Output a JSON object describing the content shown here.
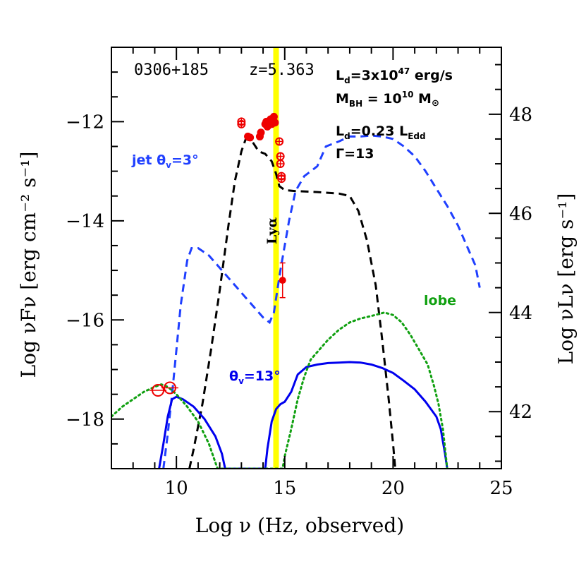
{
  "chart_data": {
    "type": "line",
    "xlabel": "Log ν (Hz, observed)",
    "ylabel_left": "Log νFν [erg cm⁻² s⁻¹]",
    "ylabel_right": "Log νLν [erg s⁻¹]",
    "xlim": [
      7,
      25
    ],
    "ylim": [
      -19,
      -10.5
    ],
    "xticks": [
      10,
      15,
      20,
      25
    ],
    "yticks_left": [
      -12,
      -14,
      -16,
      -18
    ],
    "ytick_labels_left": [
      "−12",
      "−14",
      "−16",
      "−18"
    ],
    "yticks_right": [
      {
        "label": "48",
        "left_value": -11.85
      },
      {
        "label": "46",
        "left_value": -13.85
      },
      {
        "label": "44",
        "left_value": -15.85
      },
      {
        "label": "42",
        "left_value": -17.85
      }
    ],
    "lya_line": {
      "x": 14.6,
      "label": "Lyα",
      "color": "#ffff00"
    },
    "annotations": {
      "source": "0306+185",
      "redshift": "z=5.363",
      "ld": "L",
      "ld_sub": "d",
      "ld_value": "=3x10",
      "ld_exp": "47",
      "ld_unit": " erg/s",
      "mbh": "M",
      "mbh_sub": "BH",
      "mbh_value": " = 10",
      "mbh_exp": "10",
      "mbh_unit": " M",
      "mbh_unit_sub": "⊙",
      "ld_edd": "L",
      "ld_edd_sub": "d",
      "ld_edd_value": "=0.23 L",
      "ld_edd_sub2": "Edd",
      "gamma": "Γ=13",
      "jet_label": "jet θ",
      "jet_label_sub": "v",
      "jet_label_value": "=3°",
      "theta13_label": "θ",
      "theta13_sub": "v",
      "theta13_value": "=13°",
      "lobe_label": "lobe"
    },
    "colors": {
      "disk": "#000000",
      "jet_3deg": "#1f3fff",
      "jet_13deg": "#0000ee",
      "lobe": "#10a010",
      "data": "#ee0000",
      "lya": "#ffff00"
    },
    "series": [
      {
        "style": "dashed",
        "color_key": "disk",
        "points": [
          [
            10.6,
            -19
          ],
          [
            10.8,
            -18.6
          ],
          [
            11.2,
            -17.7
          ],
          [
            11.6,
            -16.6
          ],
          [
            12.0,
            -15.4
          ],
          [
            12.4,
            -14.1
          ],
          [
            12.7,
            -13.2
          ],
          [
            13.0,
            -12.6
          ],
          [
            13.2,
            -12.35
          ],
          [
            13.5,
            -12.4
          ],
          [
            13.8,
            -12.6
          ],
          [
            14.1,
            -12.65
          ],
          [
            14.4,
            -12.8
          ],
          [
            14.6,
            -13.05
          ],
          [
            14.75,
            -13.3
          ],
          [
            15.0,
            -13.38
          ],
          [
            15.5,
            -13.4
          ],
          [
            16.5,
            -13.42
          ],
          [
            17.5,
            -13.45
          ],
          [
            18.0,
            -13.5
          ],
          [
            18.4,
            -13.8
          ],
          [
            18.8,
            -14.4
          ],
          [
            19.2,
            -15.3
          ],
          [
            19.5,
            -16.4
          ],
          [
            19.8,
            -17.6
          ],
          [
            20.0,
            -18.5
          ],
          [
            20.1,
            -19
          ]
        ]
      },
      {
        "style": "dashed",
        "color_key": "jet_3deg",
        "points": [
          [
            9.4,
            -19
          ],
          [
            9.6,
            -18.3
          ],
          [
            9.8,
            -17.5
          ],
          [
            10.0,
            -16.6
          ],
          [
            10.2,
            -15.7
          ],
          [
            10.5,
            -14.8
          ],
          [
            10.7,
            -14.55
          ],
          [
            11.0,
            -14.55
          ],
          [
            11.5,
            -14.7
          ],
          [
            12.0,
            -14.95
          ],
          [
            12.5,
            -15.2
          ],
          [
            13.0,
            -15.45
          ],
          [
            13.5,
            -15.7
          ],
          [
            14.0,
            -15.95
          ],
          [
            14.3,
            -16.05
          ],
          [
            14.5,
            -15.85
          ],
          [
            14.8,
            -15.0
          ],
          [
            15.2,
            -14.0
          ],
          [
            15.5,
            -13.4
          ],
          [
            15.9,
            -13.1
          ],
          [
            16.5,
            -12.9
          ],
          [
            16.9,
            -12.5
          ],
          [
            17.5,
            -12.4
          ],
          [
            18.0,
            -12.3
          ],
          [
            18.5,
            -12.3
          ],
          [
            19.0,
            -12.28
          ],
          [
            19.5,
            -12.3
          ],
          [
            20.0,
            -12.35
          ],
          [
            20.5,
            -12.5
          ],
          [
            21.0,
            -12.7
          ],
          [
            21.5,
            -13.0
          ],
          [
            22.0,
            -13.35
          ],
          [
            22.5,
            -13.7
          ],
          [
            23.0,
            -14.1
          ],
          [
            23.5,
            -14.6
          ],
          [
            23.8,
            -14.9
          ],
          [
            24.0,
            -15.35
          ]
        ]
      },
      {
        "style": "solid",
        "color_key": "jet_13deg",
        "points": [
          [
            9.2,
            -19
          ],
          [
            9.4,
            -18.5
          ],
          [
            9.6,
            -17.95
          ],
          [
            9.8,
            -17.6
          ],
          [
            10.0,
            -17.55
          ],
          [
            10.3,
            -17.6
          ],
          [
            10.8,
            -17.75
          ],
          [
            11.3,
            -18.0
          ],
          [
            11.8,
            -18.35
          ],
          [
            12.1,
            -18.7
          ],
          [
            12.25,
            -19
          ],
          [
            14.1,
            -19
          ],
          [
            14.2,
            -18.6
          ],
          [
            14.4,
            -18.05
          ],
          [
            14.6,
            -17.8
          ],
          [
            14.8,
            -17.7
          ],
          [
            15.0,
            -17.65
          ],
          [
            15.3,
            -17.45
          ],
          [
            15.6,
            -17.1
          ],
          [
            16.0,
            -16.95
          ],
          [
            16.5,
            -16.9
          ],
          [
            17.0,
            -16.87
          ],
          [
            17.5,
            -16.86
          ],
          [
            18.0,
            -16.85
          ],
          [
            18.5,
            -16.86
          ],
          [
            19.0,
            -16.9
          ],
          [
            19.5,
            -16.97
          ],
          [
            20.0,
            -17.07
          ],
          [
            20.5,
            -17.23
          ],
          [
            21.0,
            -17.4
          ],
          [
            21.5,
            -17.65
          ],
          [
            22.0,
            -17.95
          ],
          [
            22.2,
            -18.2
          ],
          [
            22.4,
            -18.7
          ],
          [
            22.5,
            -19
          ]
        ]
      },
      {
        "style": "dotted",
        "color_key": "lobe",
        "points": [
          [
            7.0,
            -17.95
          ],
          [
            7.5,
            -17.75
          ],
          [
            8.0,
            -17.6
          ],
          [
            8.5,
            -17.45
          ],
          [
            9.0,
            -17.35
          ],
          [
            9.3,
            -17.3
          ],
          [
            9.6,
            -17.35
          ],
          [
            10.0,
            -17.5
          ],
          [
            10.5,
            -17.75
          ],
          [
            11.0,
            -18.05
          ],
          [
            11.5,
            -18.5
          ],
          [
            11.9,
            -19
          ],
          [
            14.9,
            -19
          ],
          [
            15.0,
            -18.75
          ],
          [
            15.3,
            -18.2
          ],
          [
            15.6,
            -17.6
          ],
          [
            15.9,
            -17.15
          ],
          [
            16.2,
            -16.8
          ],
          [
            16.6,
            -16.6
          ],
          [
            17.0,
            -16.4
          ],
          [
            17.5,
            -16.2
          ],
          [
            18.0,
            -16.05
          ],
          [
            18.5,
            -15.97
          ],
          [
            19.0,
            -15.92
          ],
          [
            19.6,
            -15.85
          ],
          [
            20.0,
            -15.9
          ],
          [
            20.4,
            -16.05
          ],
          [
            20.8,
            -16.3
          ],
          [
            21.2,
            -16.6
          ],
          [
            21.6,
            -16.9
          ],
          [
            21.9,
            -17.35
          ],
          [
            22.1,
            -17.7
          ],
          [
            22.3,
            -18.2
          ],
          [
            22.5,
            -19
          ]
        ]
      }
    ],
    "data_points": [
      {
        "x": 13.0,
        "y": -12.05,
        "symbol": "circle-plus"
      },
      {
        "x": 13.0,
        "y": -12.0,
        "symbol": "circle-plus"
      },
      {
        "x": 13.3,
        "y": -12.3,
        "symbol": "dot"
      },
      {
        "x": 13.4,
        "y": -12.32,
        "symbol": "dot"
      },
      {
        "x": 13.85,
        "y": -12.3,
        "symbol": "dot"
      },
      {
        "x": 13.9,
        "y": -12.22,
        "symbol": "dot"
      },
      {
        "x": 14.1,
        "y": -12.05,
        "symbol": "dot"
      },
      {
        "x": 14.15,
        "y": -12.0,
        "symbol": "dot"
      },
      {
        "x": 14.2,
        "y": -12.1,
        "symbol": "dot"
      },
      {
        "x": 14.3,
        "y": -12.0,
        "symbol": "dot"
      },
      {
        "x": 14.35,
        "y": -11.95,
        "symbol": "dot"
      },
      {
        "x": 14.4,
        "y": -12.05,
        "symbol": "dot"
      },
      {
        "x": 14.5,
        "y": -11.9,
        "symbol": "dot"
      },
      {
        "x": 14.55,
        "y": -12.02,
        "symbol": "dot"
      },
      {
        "x": 14.75,
        "y": -12.4,
        "symbol": "circle-plus"
      },
      {
        "x": 14.8,
        "y": -12.7,
        "symbol": "circle-plus"
      },
      {
        "x": 14.8,
        "y": -12.85,
        "symbol": "circle-plus"
      },
      {
        "x": 14.85,
        "y": -13.1,
        "symbol": "circle-plus"
      },
      {
        "x": 14.85,
        "y": -13.15,
        "symbol": "circle-plus"
      },
      {
        "x": 14.9,
        "y": -15.2,
        "symbol": "dot-errorbar",
        "yerr": 0.35
      },
      {
        "x": 9.15,
        "y": -17.42,
        "symbol": "open-circle"
      },
      {
        "x": 9.7,
        "y": -17.37,
        "symbol": "open-circle"
      }
    ]
  }
}
